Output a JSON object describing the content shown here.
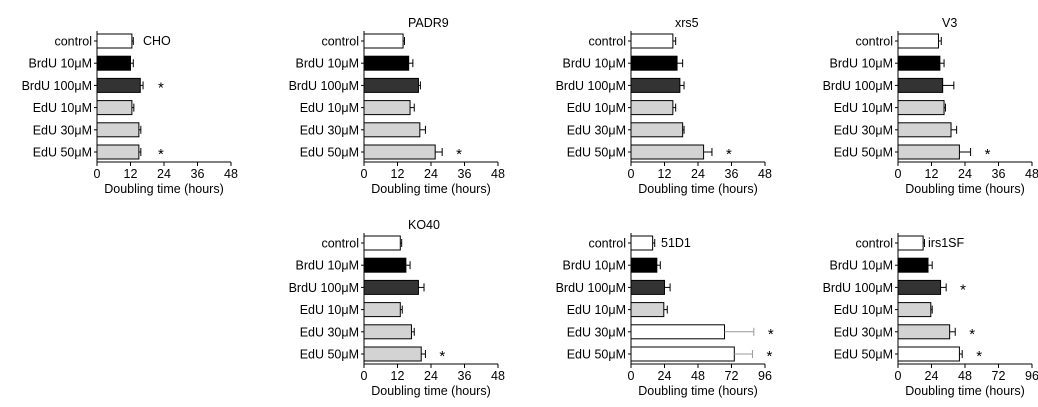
{
  "colors": {
    "control": "#ffffff",
    "brdu_10": "#000000",
    "brdu_100": "#333333",
    "edu": "#d3d3d3",
    "stroke": "#000000",
    "error_faded": "#999999"
  },
  "chart_data": [
    {
      "type": "bar",
      "orientation": "horizontal",
      "title": "CHO",
      "categories": [
        "control",
        "BrdU 10μM",
        "BrdU 100μM",
        "EdU 10μM",
        "EdU 30μM",
        "EdU 50μM"
      ],
      "values": [
        12.5,
        12,
        15.5,
        12.5,
        15,
        15
      ],
      "errors": [
        0.5,
        1,
        1,
        0.7,
        0.7,
        0.7
      ],
      "colors": [
        "control",
        "brdu_10",
        "brdu_100",
        "edu",
        "edu",
        "edu"
      ],
      "significant": [
        false,
        false,
        true,
        false,
        false,
        true
      ],
      "xlim": [
        0,
        48
      ],
      "xticks": [
        0,
        12,
        24,
        36,
        48
      ],
      "xlabel": "Doubling time (hours)"
    },
    {
      "type": "bar",
      "orientation": "horizontal",
      "title": "PADR9",
      "categories": [
        "control",
        "BrdU 10μM",
        "BrdU 100μM",
        "EdU 10μM",
        "EdU 30μM",
        "EdU 50μM"
      ],
      "values": [
        14,
        16,
        19.5,
        16.5,
        20,
        25.5
      ],
      "errors": [
        0.5,
        1.5,
        0.7,
        1.5,
        2,
        2.5
      ],
      "colors": [
        "control",
        "brdu_10",
        "brdu_100",
        "edu",
        "edu",
        "edu"
      ],
      "significant": [
        false,
        false,
        false,
        false,
        false,
        true
      ],
      "xlim": [
        0,
        48
      ],
      "xticks": [
        0,
        12,
        24,
        36,
        48
      ],
      "xlabel": "Doubling time (hours)"
    },
    {
      "type": "bar",
      "orientation": "horizontal",
      "title": "xrs5",
      "categories": [
        "control",
        "BrdU 10μM",
        "BrdU 100μM",
        "EdU 10μM",
        "EdU 30μM",
        "EdU 50μM"
      ],
      "values": [
        15,
        16.5,
        17.5,
        15,
        18.5,
        26
      ],
      "errors": [
        1,
        2,
        1.5,
        1,
        0.5,
        3
      ],
      "colors": [
        "control",
        "brdu_10",
        "brdu_100",
        "edu",
        "edu",
        "edu"
      ],
      "significant": [
        false,
        false,
        false,
        false,
        false,
        true
      ],
      "xlim": [
        0,
        48
      ],
      "xticks": [
        0,
        12,
        24,
        36,
        48
      ],
      "xlabel": "Doubling time (hours)"
    },
    {
      "type": "bar",
      "orientation": "horizontal",
      "title": "V3",
      "categories": [
        "control",
        "BrdU 10μM",
        "BrdU 100μM",
        "EdU 10μM",
        "EdU 30μM",
        "EdU 50μM"
      ],
      "values": [
        14.5,
        15,
        16,
        16.5,
        19,
        22
      ],
      "errors": [
        1,
        1.5,
        4,
        0.5,
        2,
        4
      ],
      "colors": [
        "control",
        "brdu_10",
        "brdu_100",
        "edu",
        "edu",
        "edu"
      ],
      "significant": [
        false,
        false,
        false,
        false,
        false,
        true
      ],
      "xlim": [
        0,
        48
      ],
      "xticks": [
        0,
        12,
        24,
        36,
        48
      ],
      "xlabel": "Doubling time (hours)"
    },
    {
      "type": "bar",
      "orientation": "horizontal",
      "title": "KO40",
      "categories": [
        "control",
        "BrdU 10μM",
        "BrdU 100μM",
        "EdU 10μM",
        "EdU 30μM",
        "EdU 50μM"
      ],
      "values": [
        13,
        15,
        19.5,
        13,
        17,
        20.5
      ],
      "errors": [
        0.5,
        1.5,
        2,
        0.7,
        1,
        1.5
      ],
      "colors": [
        "control",
        "brdu_10",
        "brdu_100",
        "edu",
        "edu",
        "edu"
      ],
      "significant": [
        false,
        false,
        false,
        false,
        false,
        true
      ],
      "xlim": [
        0,
        48
      ],
      "xticks": [
        0,
        12,
        24,
        36,
        48
      ],
      "xlabel": "Doubling time (hours)"
    },
    {
      "type": "bar",
      "orientation": "horizontal",
      "title": "51D1",
      "categories": [
        "control",
        "BrdU 10μM",
        "BrdU 100μM",
        "EdU 10μM",
        "EdU 30μM",
        "EdU 50μM"
      ],
      "values": [
        15.5,
        18.5,
        24,
        23.5,
        67,
        74
      ],
      "errors": [
        1.5,
        2.5,
        4,
        2.5,
        21,
        13
      ],
      "colors": [
        "control",
        "brdu_10",
        "brdu_100",
        "edu",
        "control",
        "control"
      ],
      "significant": [
        false,
        false,
        false,
        false,
        true,
        true
      ],
      "xlim": [
        0,
        96
      ],
      "xticks": [
        0,
        24,
        48,
        72,
        96
      ],
      "xlabel": "Doubling time (hours)"
    },
    {
      "type": "bar",
      "orientation": "horizontal",
      "title": "irs1SF",
      "categories": [
        "control",
        "BrdU 10μM",
        "BrdU 100μM",
        "EdU 10μM",
        "EdU 30μM",
        "EdU 50μM"
      ],
      "values": [
        18,
        21.5,
        30.5,
        23.5,
        37,
        44
      ],
      "errors": [
        1,
        3,
        4,
        1,
        4,
        2
      ],
      "colors": [
        "control",
        "brdu_10",
        "brdu_100",
        "edu",
        "edu",
        "control"
      ],
      "significant": [
        false,
        false,
        true,
        false,
        true,
        true
      ],
      "xlim": [
        0,
        96
      ],
      "xticks": [
        0,
        24,
        48,
        72,
        96
      ],
      "xlabel": "Doubling time (hours)"
    }
  ]
}
